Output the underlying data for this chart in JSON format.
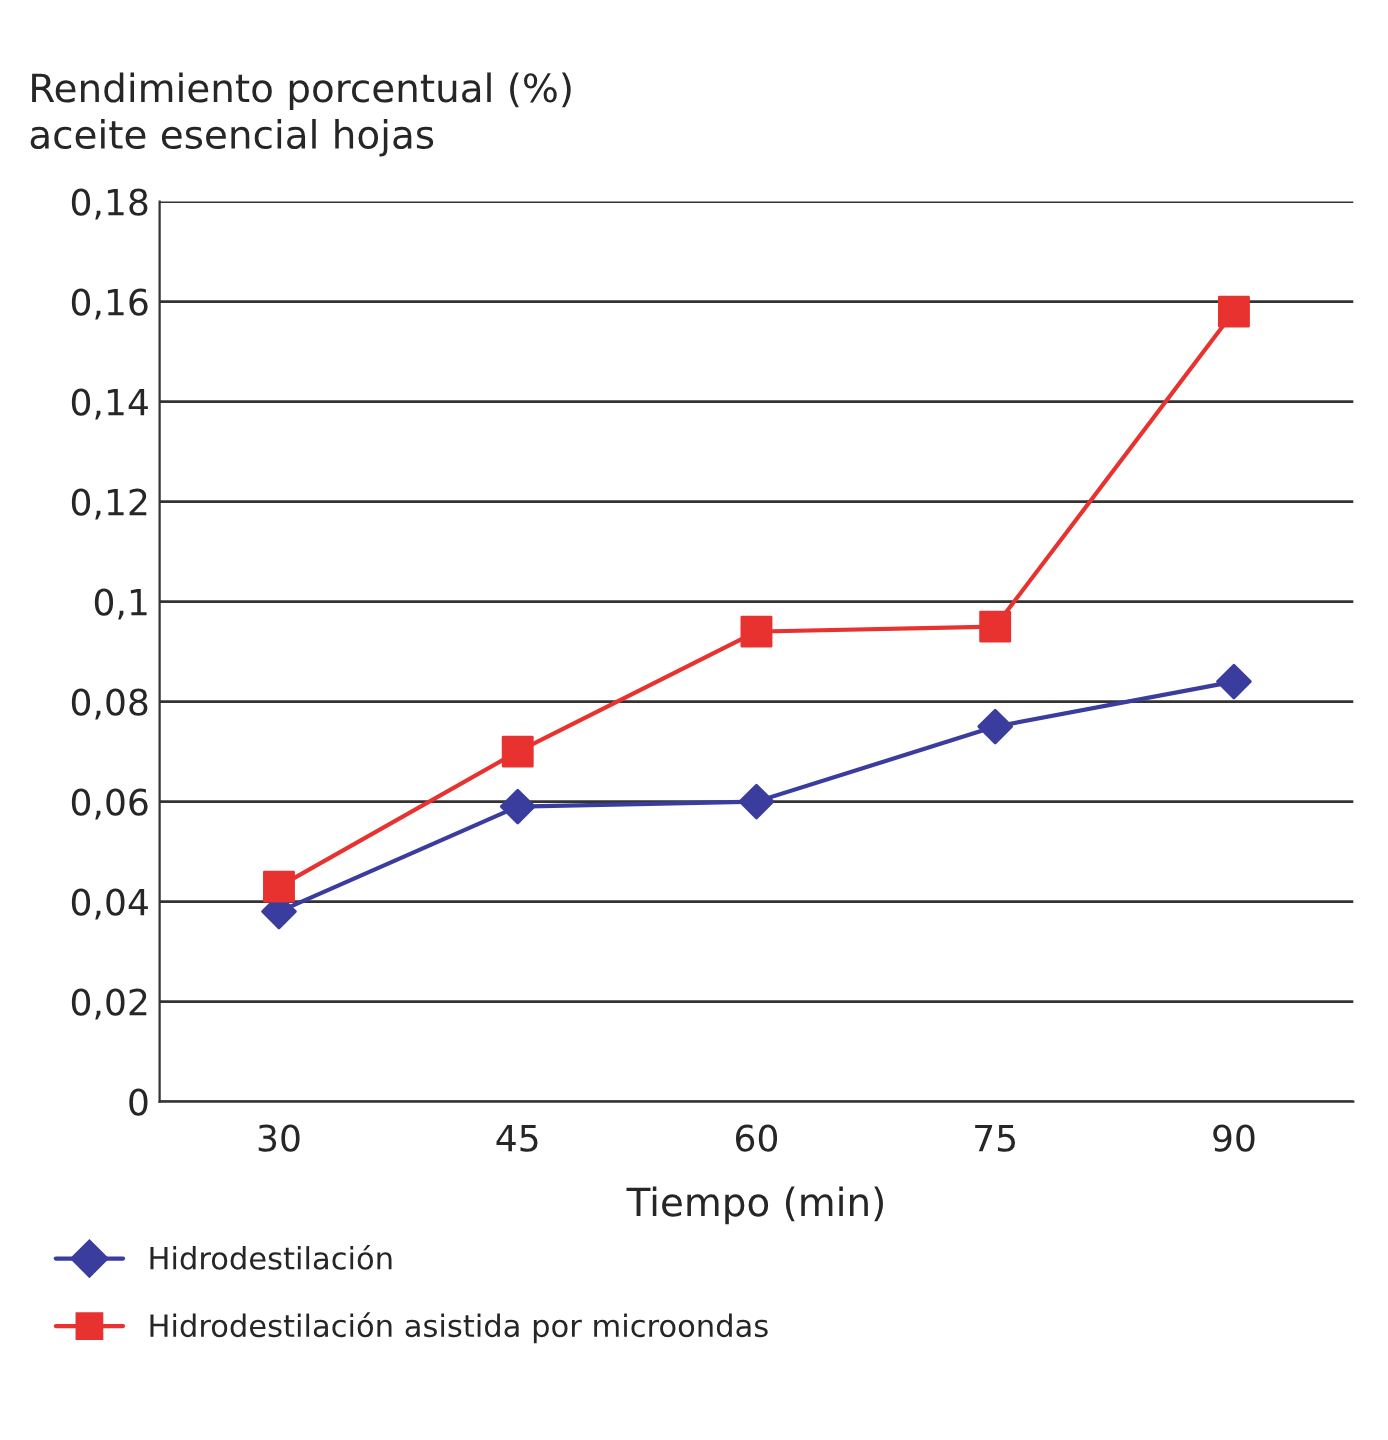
{
  "chart_data": {
    "type": "line",
    "ylabel": "Rendimiento porcentual (%)\naceite esencial hojas",
    "xlabel": "Tiempo (min)",
    "categories": [
      "30",
      "45",
      "60",
      "75",
      "90"
    ],
    "series": [
      {
        "name": "Hidrodestilación",
        "color": "#3a3d9e",
        "marker": "diamond",
        "values": [
          0.038,
          0.059,
          0.06,
          0.075,
          0.084
        ]
      },
      {
        "name": "Hidrodestilación asistida por microondas",
        "color": "#e8322f",
        "marker": "square",
        "values": [
          0.043,
          0.07,
          0.094,
          0.095,
          0.158
        ]
      }
    ],
    "ylim": [
      0,
      0.18
    ],
    "yticks": [
      {
        "value": 0,
        "label": "0"
      },
      {
        "value": 0.02,
        "label": "0,02"
      },
      {
        "value": 0.04,
        "label": "0,04"
      },
      {
        "value": 0.06,
        "label": "0,06"
      },
      {
        "value": 0.08,
        "label": "0,08"
      },
      {
        "value": 0.1,
        "label": "0,1"
      },
      {
        "value": 0.12,
        "label": "0,12"
      },
      {
        "value": 0.14,
        "label": "0,14"
      },
      {
        "value": 0.16,
        "label": "0,16"
      },
      {
        "value": 0.18,
        "label": "0,18"
      }
    ],
    "grid": "y",
    "legend": "bottom",
    "line_style": "solid"
  }
}
